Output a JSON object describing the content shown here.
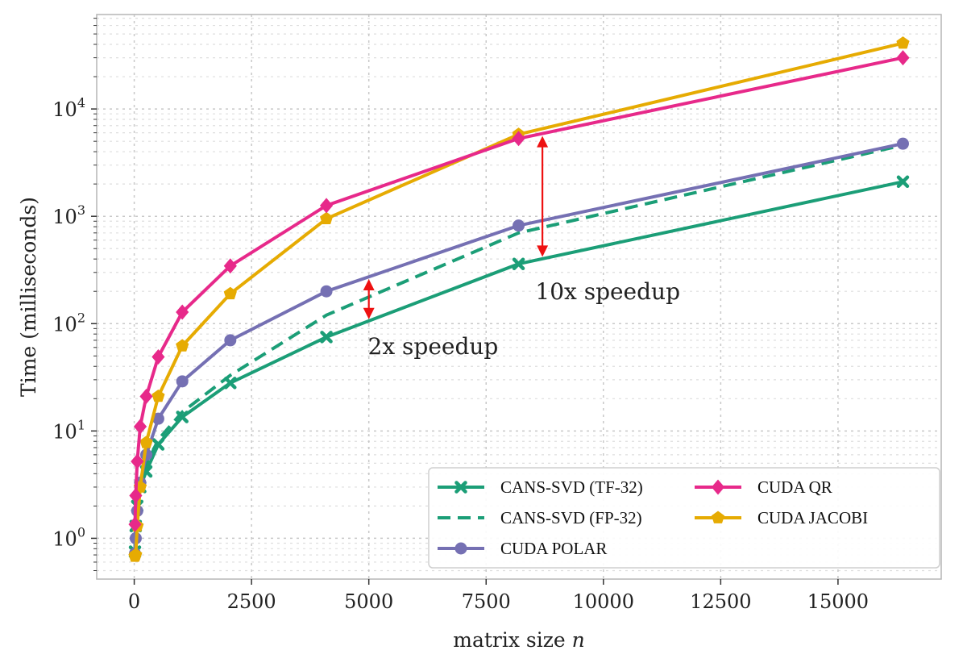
{
  "chart_data": {
    "type": "line",
    "title": "",
    "xlabel": "matrix size",
    "xlabel_var": "n",
    "ylabel": "Time (milliseconds)",
    "xlim": [
      -800,
      17200
    ],
    "ylim_log10": [
      -0.38,
      4.88
    ],
    "yscale": "log",
    "grid": true,
    "legend_placement": "lower-right",
    "x_ticks": [
      0,
      2500,
      5000,
      7500,
      10000,
      12500,
      15000
    ],
    "x_tick_labels": [
      "0",
      "2500",
      "5000",
      "7500",
      "10000",
      "12500",
      "15000"
    ],
    "y_ticks": [
      1,
      10,
      100,
      1000,
      10000
    ],
    "y_tick_labels": [
      {
        "base": "10",
        "exp": "0"
      },
      {
        "base": "10",
        "exp": "1"
      },
      {
        "base": "10",
        "exp": "2"
      },
      {
        "base": "10",
        "exp": "3"
      },
      {
        "base": "10",
        "exp": "4"
      }
    ],
    "series": [
      {
        "name": "CANS-SVD (TF-32)",
        "color": "#1b9e77",
        "marker": "x-marker",
        "dashed": false,
        "x": [
          16,
          32,
          64,
          128,
          256,
          512,
          1024,
          2048,
          4096,
          8192,
          16384
        ],
        "y": [
          0.75,
          1.3,
          2.0,
          3.0,
          4.2,
          7.5,
          13.5,
          28,
          75,
          360,
          2100
        ]
      },
      {
        "name": "CANS-SVD (FP-32)",
        "color": "#1b9e77",
        "marker": "none",
        "dashed": true,
        "x": [
          16,
          32,
          64,
          128,
          256,
          512,
          1024,
          2048,
          4096,
          8192,
          16384
        ],
        "y": [
          0.75,
          1.35,
          2.2,
          3.3,
          4.8,
          8.3,
          15,
          33,
          120,
          700,
          4600
        ]
      },
      {
        "name": "CUDA POLAR",
        "color": "#7570b3",
        "marker": "circle",
        "dashed": false,
        "x": [
          16,
          32,
          64,
          128,
          256,
          512,
          1024,
          2048,
          4096,
          8192,
          16384
        ],
        "y": [
          0.72,
          1.0,
          1.8,
          3.3,
          6.0,
          13,
          29,
          70,
          200,
          820,
          4750
        ]
      },
      {
        "name": "CUDA QR",
        "color": "#e7298a",
        "marker": "diamond",
        "dashed": false,
        "x": [
          16,
          32,
          64,
          128,
          256,
          512,
          1024,
          2048,
          4096,
          8192,
          16384
        ],
        "y": [
          1.35,
          2.5,
          5.2,
          11,
          21,
          49,
          128,
          345,
          1260,
          5300,
          30000
        ]
      },
      {
        "name": "CUDA JACOBI",
        "color": "#e6ab02",
        "marker": "pentagon",
        "dashed": false,
        "x": [
          16,
          32,
          64,
          128,
          256,
          512,
          1024,
          2048,
          4096,
          8192,
          16384
        ],
        "y": [
          0.68,
          0.7,
          1.3,
          3.0,
          7.8,
          21,
          62,
          190,
          950,
          5800,
          41000
        ]
      }
    ],
    "annotations": [
      {
        "text": "2x speedup",
        "arrow_x": 5000,
        "arrow_y": [
          110,
          260
        ],
        "text_x": 4980,
        "text_y": 62
      },
      {
        "text": "10x speedup",
        "arrow_x": 8700,
        "arrow_y": [
          420,
          5600
        ],
        "text_x": 8550,
        "text_y": 200
      }
    ]
  }
}
